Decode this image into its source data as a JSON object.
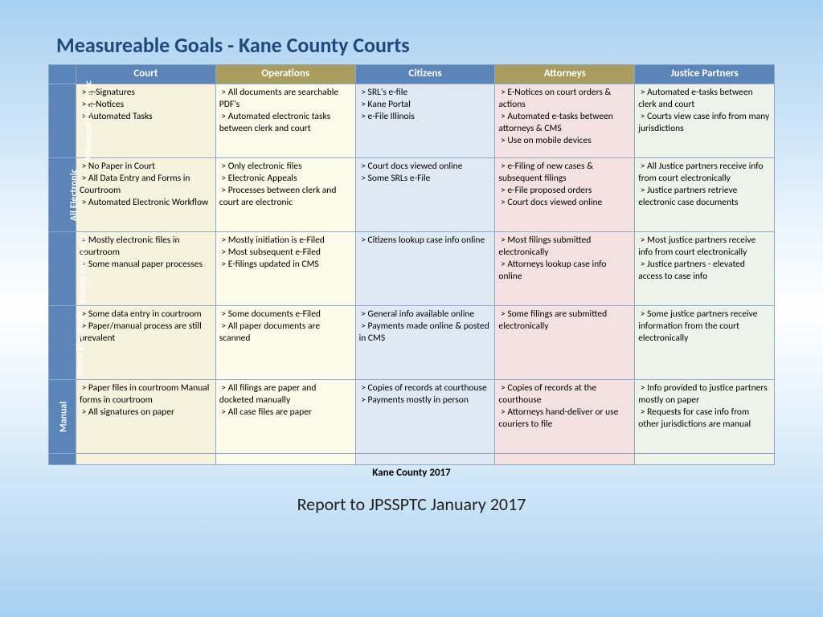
{
  "title": "Measureable Goals - Kane County Courts",
  "caption": "Kane County 2017",
  "subtitle": "Report to JPSSPTC January 2017",
  "colors": {
    "header_blue": "#5b85b8",
    "header_olive": "#a89c5e",
    "col_court": "#f6f2de",
    "col_operations": "#fcfae8",
    "col_citizens": "#dfe9f4",
    "col_attorneys": "#f3e2e1",
    "col_partners": "#eef3ea",
    "border": "#8fa8c8",
    "title_color": "#1f497d"
  },
  "columns": [
    {
      "label": "Court",
      "bg_key": "col_court",
      "head_bg": "header_blue"
    },
    {
      "label": "Operations",
      "bg_key": "col_operations",
      "head_bg": "header_olive"
    },
    {
      "label": "Citizens",
      "bg_key": "col_citizens",
      "head_bg": "header_blue"
    },
    {
      "label": "Attorneys",
      "bg_key": "col_attorneys",
      "head_bg": "header_olive"
    },
    {
      "label": "Justice Partners",
      "bg_key": "col_partners",
      "head_bg": "header_blue"
    }
  ],
  "rows": [
    {
      "label": "Advanced Electronic",
      "cells": [
        " > e-Signatures\n > e-Notices\n > Automated Tasks",
        " > All documents are searchable PDF's\n > Automated electronic tasks between clerk and court",
        " > SRL's e-file\n > Kane Portal\n > e-File Illinois",
        " > E-Notices on court orders & actions\n > Automated e-tasks between attorneys & CMS\n > Use on mobile devices",
        " > Automated e-tasks between clerk and court\n > Courts view case info from many jurisdictions"
      ]
    },
    {
      "label": "All Electronic",
      "cells": [
        " > No Paper in Court\n > All Data Entry and Forms in Courtroom\n > Automated Electronic Workflow",
        " > Only electronic files\n > Electronic Appeals\n > Processes between clerk and court are electronic",
        " > Court docs viewed online\n > Some SRLs e-File",
        " > e-Filing of new cases & subsequent filings\n > e-File proposed orders\n > Court docs viewed online",
        " > All Justice partners receive info from court electronically\n > Justice partners retrieve electronic case documents"
      ]
    },
    {
      "label": "Mostly Electronic",
      "cells": [
        " > Mostly electronic files in courtroom\n > Some manual paper processes",
        " > Mostly initiation is e-Filed\n > Most subsequent e-Filed\n > E-filings updated in CMS",
        " > Citizens lookup case info online",
        " > Most filings submitted electronically\n > Attorneys lookup case info online",
        " > Most justice partners receive info from court electronically\n > Justice partners - elevated access to case info"
      ]
    },
    {
      "label": "Some Electronic",
      "cells": [
        " > Some data entry in courtroom\n > Paper/manual process are still prevalent",
        " > Some documents e-Filed\n > All paper documents are scanned",
        " > General info available online\n > Payments made online & posted in CMS",
        " > Some filings are submitted electronically",
        " > Some justice partners receive information from the court electronically"
      ]
    },
    {
      "label": "Manual",
      "cells": [
        " > Paper files in courtroom Manual forms in courtroom\n > All signatures on paper",
        " > All filings are paper and docketed manually\n > All case files are paper",
        " > Copies of records at courthouse\n > Payments mostly in person",
        " > Copies of records at the courthouse\n > Attorneys hand-deliver or use couriers to file",
        " > Info provided to justice partners mostly on paper\n > Requests for case info from other jurisdictions are manual"
      ]
    }
  ]
}
